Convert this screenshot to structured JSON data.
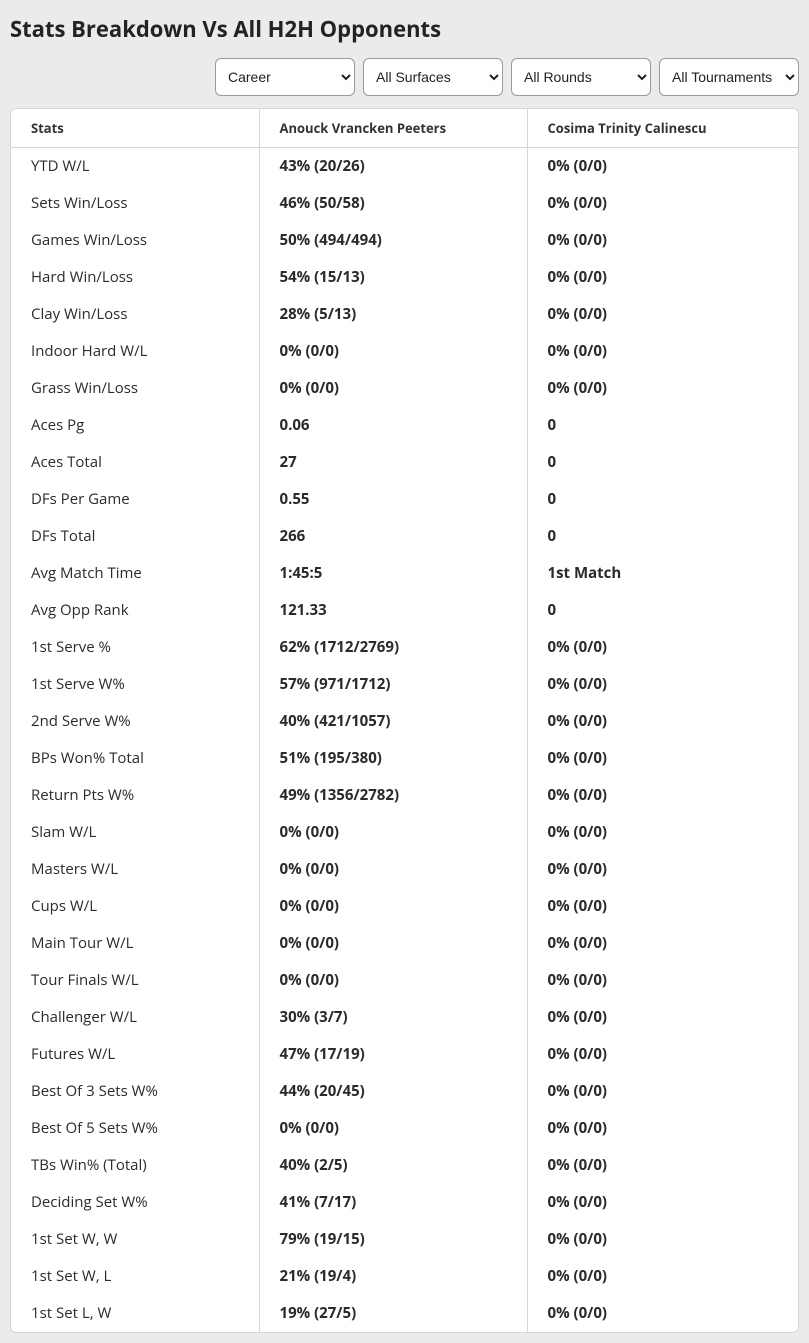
{
  "title": "Stats Breakdown Vs All H2H Opponents",
  "filters": {
    "career": "Career",
    "surfaces": "All Surfaces",
    "rounds": "All Rounds",
    "tournaments": "All Tournaments"
  },
  "columns": {
    "stats": "Stats",
    "player1": "Anouck Vrancken Peeters",
    "player2": "Cosima Trinity Calinescu"
  },
  "rows": [
    {
      "stat": "YTD W/L",
      "p1": "43% (20/26)",
      "p2": "0% (0/0)"
    },
    {
      "stat": "Sets Win/Loss",
      "p1": "46% (50/58)",
      "p2": "0% (0/0)"
    },
    {
      "stat": "Games Win/Loss",
      "p1": "50% (494/494)",
      "p2": "0% (0/0)"
    },
    {
      "stat": "Hard Win/Loss",
      "p1": "54% (15/13)",
      "p2": "0% (0/0)"
    },
    {
      "stat": "Clay Win/Loss",
      "p1": "28% (5/13)",
      "p2": "0% (0/0)"
    },
    {
      "stat": "Indoor Hard W/L",
      "p1": "0% (0/0)",
      "p2": "0% (0/0)"
    },
    {
      "stat": "Grass Win/Loss",
      "p1": "0% (0/0)",
      "p2": "0% (0/0)"
    },
    {
      "stat": "Aces Pg",
      "p1": "0.06",
      "p2": "0"
    },
    {
      "stat": "Aces Total",
      "p1": "27",
      "p2": "0"
    },
    {
      "stat": "DFs Per Game",
      "p1": "0.55",
      "p2": "0"
    },
    {
      "stat": "DFs Total",
      "p1": "266",
      "p2": "0"
    },
    {
      "stat": "Avg Match Time",
      "p1": "1:45:5",
      "p2": "1st Match"
    },
    {
      "stat": "Avg Opp Rank",
      "p1": "121.33",
      "p2": "0"
    },
    {
      "stat": "1st Serve %",
      "p1": "62% (1712/2769)",
      "p2": "0% (0/0)"
    },
    {
      "stat": "1st Serve W%",
      "p1": "57% (971/1712)",
      "p2": "0% (0/0)"
    },
    {
      "stat": "2nd Serve W%",
      "p1": "40% (421/1057)",
      "p2": "0% (0/0)"
    },
    {
      "stat": "BPs Won% Total",
      "p1": "51% (195/380)",
      "p2": "0% (0/0)"
    },
    {
      "stat": "Return Pts W%",
      "p1": "49% (1356/2782)",
      "p2": "0% (0/0)"
    },
    {
      "stat": "Slam W/L",
      "p1": "0% (0/0)",
      "p2": "0% (0/0)"
    },
    {
      "stat": "Masters W/L",
      "p1": "0% (0/0)",
      "p2": "0% (0/0)"
    },
    {
      "stat": "Cups W/L",
      "p1": "0% (0/0)",
      "p2": "0% (0/0)"
    },
    {
      "stat": "Main Tour W/L",
      "p1": "0% (0/0)",
      "p2": "0% (0/0)"
    },
    {
      "stat": "Tour Finals W/L",
      "p1": "0% (0/0)",
      "p2": "0% (0/0)"
    },
    {
      "stat": "Challenger W/L",
      "p1": "30% (3/7)",
      "p2": "0% (0/0)"
    },
    {
      "stat": "Futures W/L",
      "p1": "47% (17/19)",
      "p2": "0% (0/0)"
    },
    {
      "stat": "Best Of 3 Sets W%",
      "p1": "44% (20/45)",
      "p2": "0% (0/0)"
    },
    {
      "stat": "Best Of 5 Sets W%",
      "p1": "0% (0/0)",
      "p2": "0% (0/0)"
    },
    {
      "stat": "TBs Win% (Total)",
      "p1": "40% (2/5)",
      "p2": "0% (0/0)"
    },
    {
      "stat": "Deciding Set W%",
      "p1": "41% (7/17)",
      "p2": "0% (0/0)"
    },
    {
      "stat": "1st Set W, W",
      "p1": "79% (19/15)",
      "p2": "0% (0/0)"
    },
    {
      "stat": "1st Set W, L",
      "p1": "21% (19/4)",
      "p2": "0% (0/0)"
    },
    {
      "stat": "1st Set L, W",
      "p1": "19% (27/5)",
      "p2": "0% (0/0)"
    }
  ]
}
